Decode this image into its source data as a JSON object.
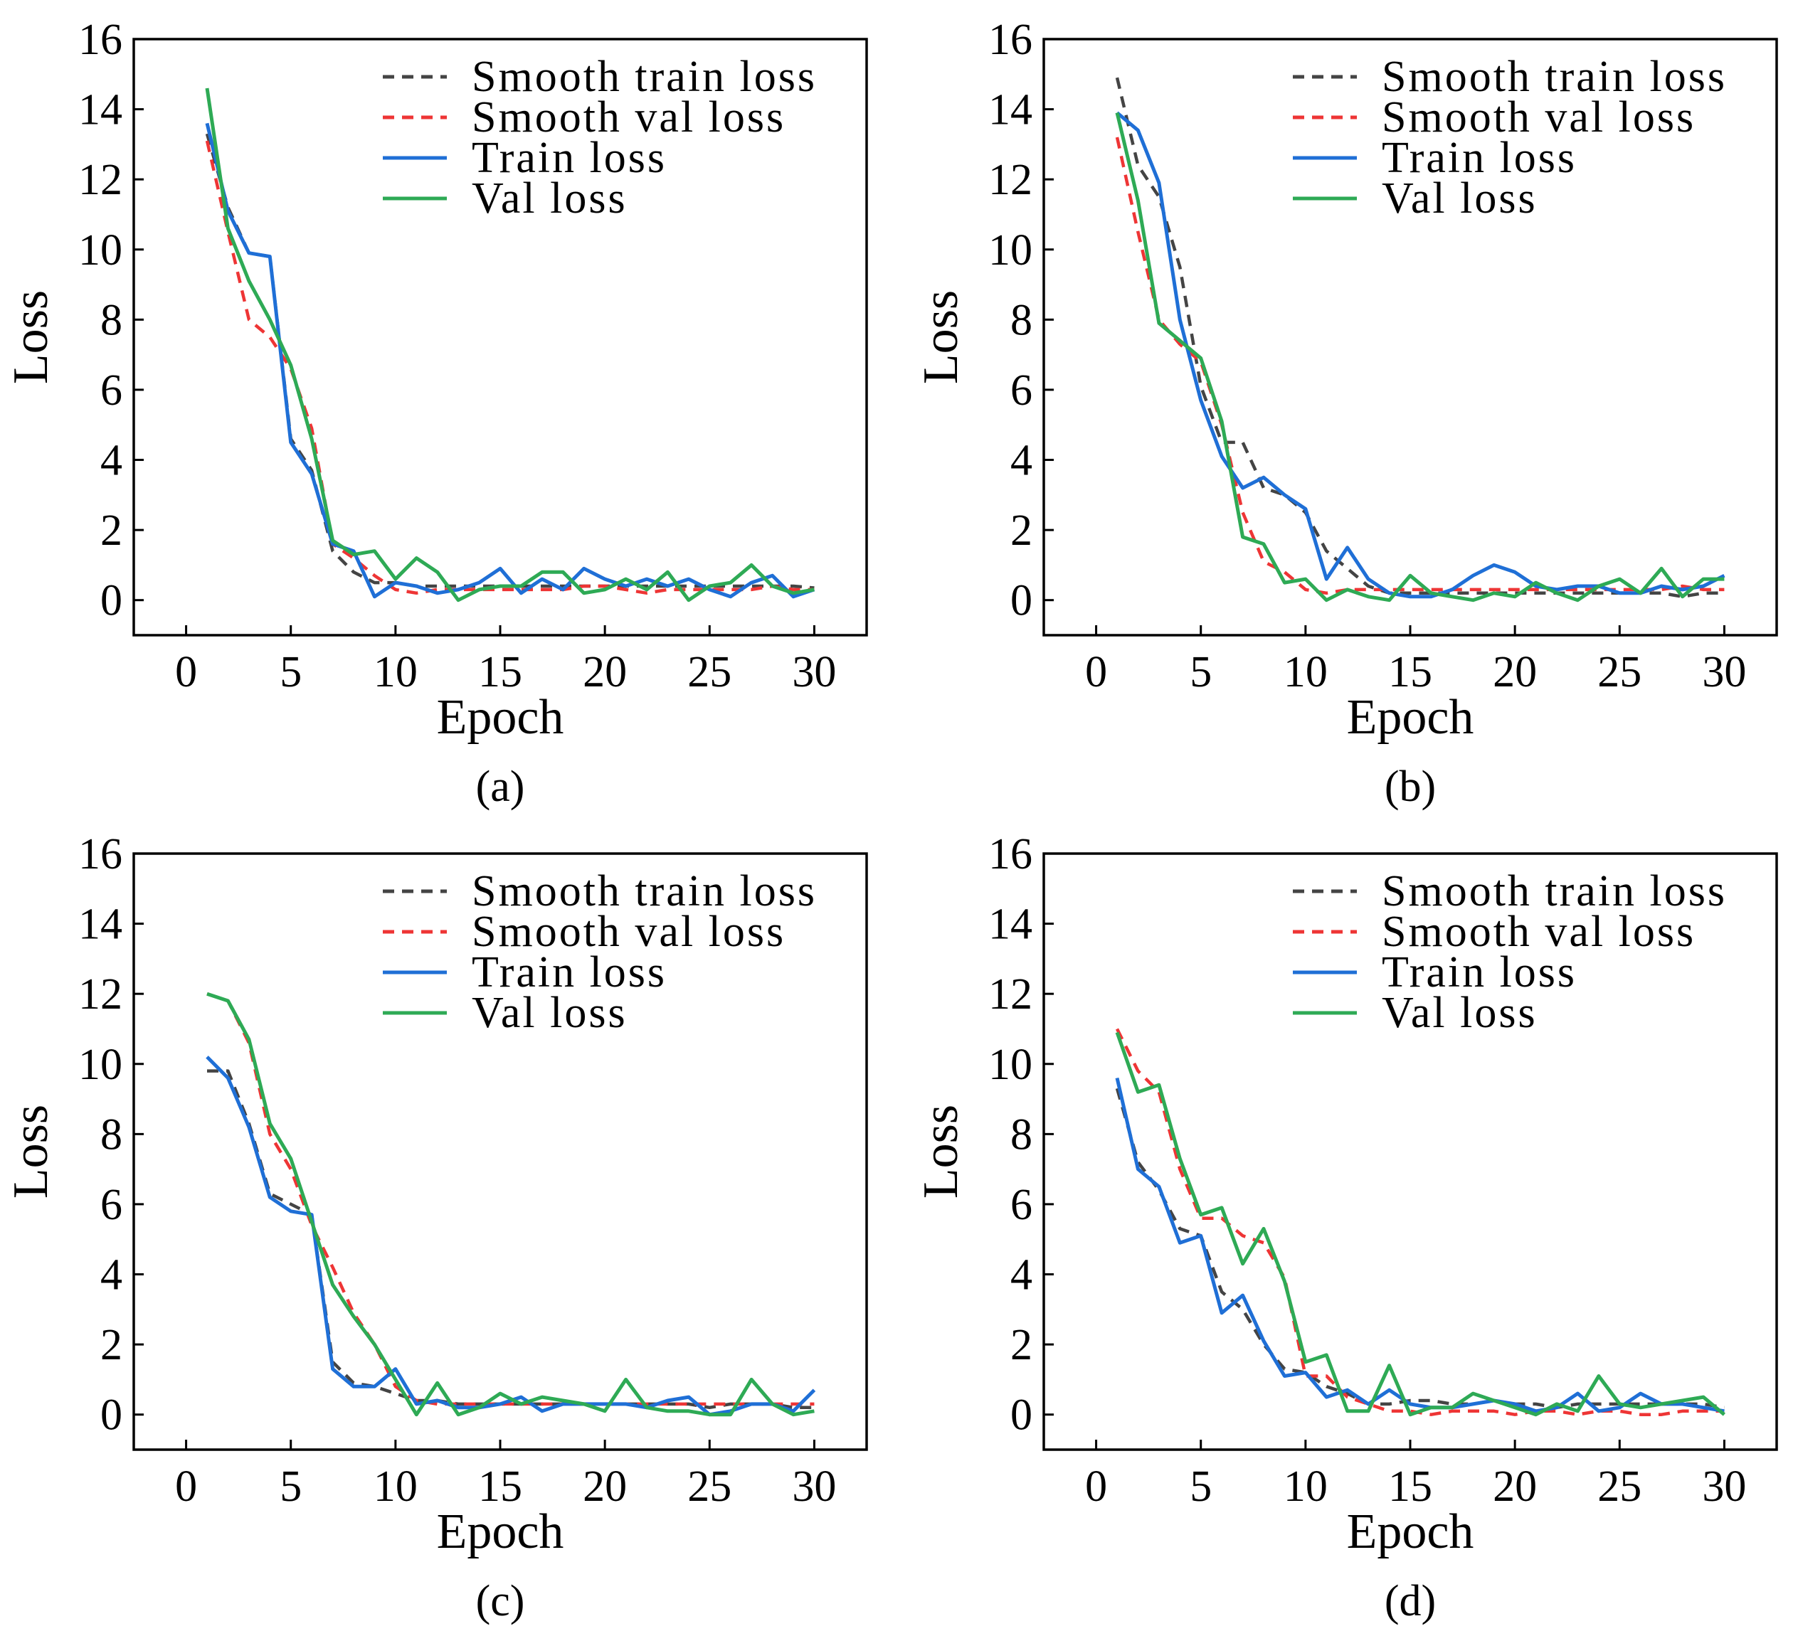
{
  "colors": {
    "smooth_train": "#444444",
    "smooth_val": "#ee3535",
    "train": "#1f6fd6",
    "val": "#2eaa55"
  },
  "chart_data": [
    {
      "type": "line",
      "caption": "(a)",
      "xlabel": "Epoch",
      "ylabel": "Loss",
      "xlim": [
        -2.5,
        32.5
      ],
      "ylim": [
        -1,
        16
      ],
      "xticks": [
        0,
        5,
        10,
        15,
        20,
        25,
        30
      ],
      "yticks": [
        0,
        2,
        4,
        6,
        8,
        10,
        12,
        14,
        16
      ],
      "legend": "top-right",
      "x": [
        1,
        2,
        3,
        4,
        5,
        6,
        7,
        8,
        9,
        10,
        11,
        12,
        13,
        14,
        15,
        16,
        17,
        18,
        19,
        20,
        21,
        22,
        23,
        24,
        25,
        26,
        27,
        28,
        29,
        30
      ],
      "series": [
        {
          "name": "Smooth train loss",
          "style": "dashed",
          "color_key": "smooth_train",
          "values": [
            13.3,
            11.2,
            9.9,
            9.8,
            4.6,
            3.7,
            1.4,
            0.8,
            0.5,
            0.5,
            0.4,
            0.4,
            0.4,
            0.4,
            0.4,
            0.4,
            0.4,
            0.4,
            0.4,
            0.4,
            0.4,
            0.4,
            0.4,
            0.4,
            0.4,
            0.4,
            0.4,
            0.4,
            0.4,
            0.35
          ]
        },
        {
          "name": "Smooth val loss",
          "style": "dashed",
          "color_key": "smooth_val",
          "values": [
            13.1,
            10.5,
            8.0,
            7.5,
            6.6,
            4.9,
            1.6,
            1.2,
            0.7,
            0.3,
            0.2,
            0.3,
            0.3,
            0.3,
            0.3,
            0.3,
            0.3,
            0.3,
            0.4,
            0.4,
            0.3,
            0.2,
            0.3,
            0.3,
            0.3,
            0.3,
            0.3,
            0.4,
            0.3,
            0.3
          ]
        },
        {
          "name": "Train loss",
          "style": "solid",
          "color_key": "train",
          "values": [
            13.6,
            11.1,
            9.9,
            9.8,
            4.5,
            3.6,
            1.6,
            1.4,
            0.1,
            0.5,
            0.4,
            0.2,
            0.3,
            0.5,
            0.9,
            0.2,
            0.6,
            0.3,
            0.9,
            0.6,
            0.4,
            0.6,
            0.4,
            0.6,
            0.3,
            0.1,
            0.5,
            0.7,
            0.1,
            0.3
          ]
        },
        {
          "name": "Val loss",
          "style": "solid",
          "color_key": "val",
          "values": [
            14.6,
            10.6,
            9.1,
            8.0,
            6.7,
            4.6,
            1.7,
            1.3,
            1.4,
            0.6,
            1.2,
            0.8,
            0.0,
            0.3,
            0.4,
            0.4,
            0.8,
            0.8,
            0.2,
            0.3,
            0.6,
            0.3,
            0.8,
            0.0,
            0.4,
            0.5,
            1.0,
            0.4,
            0.2,
            0.3
          ]
        }
      ]
    },
    {
      "type": "line",
      "caption": "(b)",
      "xlabel": "Epoch",
      "ylabel": "Loss",
      "xlim": [
        -2.5,
        32.5
      ],
      "ylim": [
        -1,
        16
      ],
      "xticks": [
        0,
        5,
        10,
        15,
        20,
        25,
        30
      ],
      "yticks": [
        0,
        2,
        4,
        6,
        8,
        10,
        12,
        14,
        16
      ],
      "legend": "top-right",
      "x": [
        1,
        2,
        3,
        4,
        5,
        6,
        7,
        8,
        9,
        10,
        11,
        12,
        13,
        14,
        15,
        16,
        17,
        18,
        19,
        20,
        21,
        22,
        23,
        24,
        25,
        26,
        27,
        28,
        29,
        30
      ],
      "series": [
        {
          "name": "Smooth train loss",
          "style": "dashed",
          "color_key": "smooth_train",
          "values": [
            14.9,
            12.4,
            11.5,
            9.5,
            6.1,
            4.5,
            4.5,
            3.2,
            3.0,
            2.5,
            1.4,
            0.9,
            0.4,
            0.2,
            0.2,
            0.2,
            0.2,
            0.2,
            0.2,
            0.2,
            0.2,
            0.2,
            0.2,
            0.2,
            0.2,
            0.2,
            0.2,
            0.1,
            0.2,
            0.2
          ]
        },
        {
          "name": "Smooth val loss",
          "style": "dashed",
          "color_key": "smooth_val",
          "values": [
            13.2,
            10.5,
            8.0,
            7.3,
            6.8,
            5.0,
            2.5,
            1.1,
            0.8,
            0.3,
            0.2,
            0.3,
            0.3,
            0.3,
            0.3,
            0.3,
            0.3,
            0.3,
            0.3,
            0.3,
            0.3,
            0.3,
            0.3,
            0.3,
            0.3,
            0.3,
            0.3,
            0.4,
            0.3,
            0.3
          ]
        },
        {
          "name": "Train loss",
          "style": "solid",
          "color_key": "train",
          "values": [
            13.9,
            13.4,
            11.9,
            8.0,
            5.7,
            4.1,
            3.2,
            3.5,
            3.0,
            2.6,
            0.6,
            1.5,
            0.6,
            0.2,
            0.1,
            0.1,
            0.3,
            0.7,
            1.0,
            0.8,
            0.4,
            0.3,
            0.4,
            0.4,
            0.2,
            0.2,
            0.4,
            0.3,
            0.4,
            0.7
          ]
        },
        {
          "name": "Val loss",
          "style": "solid",
          "color_key": "val",
          "values": [
            13.9,
            11.4,
            7.9,
            7.4,
            6.9,
            5.1,
            1.8,
            1.6,
            0.5,
            0.6,
            0.0,
            0.3,
            0.1,
            0.0,
            0.7,
            0.2,
            0.1,
            0.0,
            0.2,
            0.1,
            0.5,
            0.2,
            0.0,
            0.4,
            0.6,
            0.2,
            0.9,
            0.1,
            0.6,
            0.6
          ]
        }
      ]
    },
    {
      "type": "line",
      "caption": "(c)",
      "xlabel": "Epoch",
      "ylabel": "Loss",
      "xlim": [
        -2.5,
        32.5
      ],
      "ylim": [
        -1,
        16
      ],
      "xticks": [
        0,
        5,
        10,
        15,
        20,
        25,
        30
      ],
      "yticks": [
        0,
        2,
        4,
        6,
        8,
        10,
        12,
        14,
        16
      ],
      "legend": "top-right",
      "x": [
        1,
        2,
        3,
        4,
        5,
        6,
        7,
        8,
        9,
        10,
        11,
        12,
        13,
        14,
        15,
        16,
        17,
        18,
        19,
        20,
        21,
        22,
        23,
        24,
        25,
        26,
        27,
        28,
        29,
        30
      ],
      "series": [
        {
          "name": "Smooth train loss",
          "style": "dashed",
          "color_key": "smooth_train",
          "values": [
            9.8,
            9.8,
            8.3,
            6.3,
            6.0,
            5.7,
            1.5,
            0.9,
            0.8,
            0.6,
            0.4,
            0.4,
            0.3,
            0.3,
            0.3,
            0.3,
            0.3,
            0.3,
            0.3,
            0.3,
            0.3,
            0.3,
            0.3,
            0.3,
            0.2,
            0.3,
            0.3,
            0.3,
            0.2,
            0.2
          ]
        },
        {
          "name": "Smooth val loss",
          "style": "dashed",
          "color_key": "smooth_val",
          "values": [
            12.0,
            11.8,
            10.6,
            8.0,
            7.0,
            5.4,
            4.2,
            2.9,
            2.0,
            0.8,
            0.4,
            0.3,
            0.3,
            0.3,
            0.3,
            0.3,
            0.3,
            0.3,
            0.3,
            0.3,
            0.3,
            0.3,
            0.3,
            0.3,
            0.3,
            0.3,
            0.3,
            0.3,
            0.3,
            0.3
          ]
        },
        {
          "name": "Train loss",
          "style": "solid",
          "color_key": "train",
          "values": [
            10.2,
            9.6,
            8.2,
            6.2,
            5.8,
            5.7,
            1.3,
            0.8,
            0.8,
            1.3,
            0.3,
            0.4,
            0.2,
            0.2,
            0.3,
            0.5,
            0.1,
            0.3,
            0.3,
            0.3,
            0.3,
            0.2,
            0.4,
            0.5,
            0.0,
            0.1,
            0.3,
            0.3,
            0.1,
            0.7
          ]
        },
        {
          "name": "Val loss",
          "style": "solid",
          "color_key": "val",
          "values": [
            12.0,
            11.8,
            10.7,
            8.3,
            7.3,
            5.5,
            3.7,
            2.8,
            2.0,
            1.0,
            0.0,
            0.9,
            0.0,
            0.2,
            0.6,
            0.3,
            0.5,
            0.4,
            0.3,
            0.1,
            1.0,
            0.2,
            0.1,
            0.1,
            0.0,
            0.0,
            1.0,
            0.3,
            0.0,
            0.1
          ]
        }
      ]
    },
    {
      "type": "line",
      "caption": "(d)",
      "xlabel": "Epoch",
      "ylabel": "Loss",
      "xlim": [
        -2.5,
        32.5
      ],
      "ylim": [
        -1,
        16
      ],
      "xticks": [
        0,
        5,
        10,
        15,
        20,
        25,
        30
      ],
      "yticks": [
        0,
        2,
        4,
        6,
        8,
        10,
        12,
        14,
        16
      ],
      "legend": "top-right",
      "x": [
        1,
        2,
        3,
        4,
        5,
        6,
        7,
        8,
        9,
        10,
        11,
        12,
        13,
        14,
        15,
        16,
        17,
        18,
        19,
        20,
        21,
        22,
        23,
        24,
        25,
        26,
        27,
        28,
        29,
        30
      ],
      "series": [
        {
          "name": "Smooth train loss",
          "style": "dashed",
          "color_key": "smooth_train",
          "values": [
            9.3,
            7.2,
            6.4,
            5.3,
            5.1,
            3.5,
            3.0,
            2.0,
            1.3,
            1.2,
            0.8,
            0.6,
            0.3,
            0.3,
            0.4,
            0.4,
            0.3,
            0.3,
            0.4,
            0.3,
            0.3,
            0.2,
            0.3,
            0.3,
            0.3,
            0.3,
            0.3,
            0.3,
            0.3,
            0.2
          ]
        },
        {
          "name": "Smooth val loss",
          "style": "dashed",
          "color_key": "smooth_val",
          "values": [
            11.0,
            9.8,
            9.2,
            7.0,
            5.6,
            5.6,
            5.1,
            4.9,
            3.9,
            1.1,
            1.1,
            0.5,
            0.3,
            0.1,
            0.1,
            0.0,
            0.1,
            0.1,
            0.1,
            0.0,
            0.1,
            0.1,
            0.0,
            0.1,
            0.1,
            0.0,
            0.0,
            0.1,
            0.1,
            0.1
          ]
        },
        {
          "name": "Train loss",
          "style": "solid",
          "color_key": "train",
          "values": [
            9.6,
            7.0,
            6.5,
            4.9,
            5.1,
            2.9,
            3.4,
            2.1,
            1.1,
            1.2,
            0.5,
            0.7,
            0.3,
            0.7,
            0.3,
            0.2,
            0.2,
            0.3,
            0.4,
            0.3,
            0.1,
            0.2,
            0.6,
            0.1,
            0.2,
            0.6,
            0.3,
            0.3,
            0.2,
            0.1
          ]
        },
        {
          "name": "Val loss",
          "style": "solid",
          "color_key": "val",
          "values": [
            10.9,
            9.2,
            9.4,
            7.3,
            5.7,
            5.9,
            4.3,
            5.3,
            3.8,
            1.5,
            1.7,
            0.1,
            0.1,
            1.4,
            0.0,
            0.2,
            0.2,
            0.6,
            0.4,
            0.2,
            0.0,
            0.3,
            0.1,
            1.1,
            0.3,
            0.2,
            0.3,
            0.4,
            0.5,
            0.0
          ]
        }
      ]
    }
  ]
}
